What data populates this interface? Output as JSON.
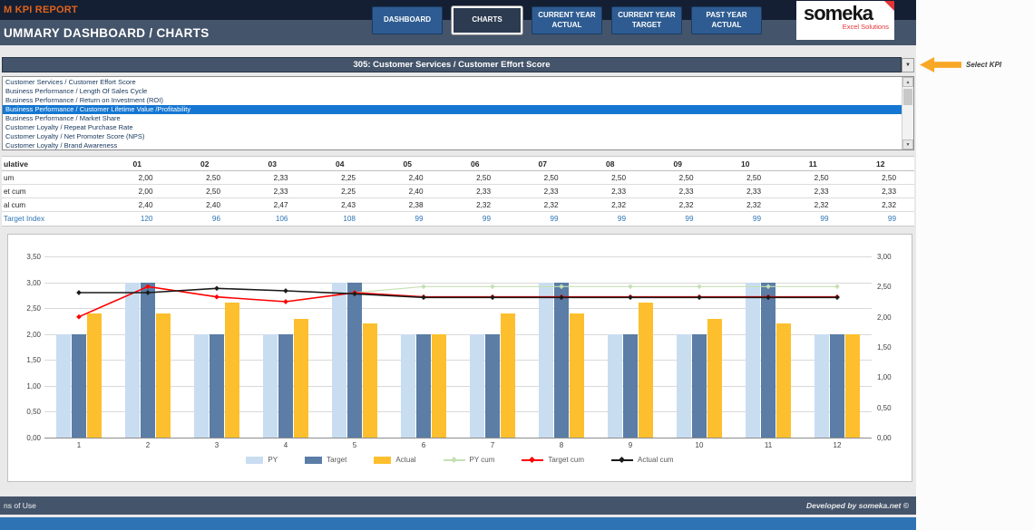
{
  "header": {
    "report_title": "M KPI REPORT",
    "page_title": "UMMARY DASHBOARD / CHARTS",
    "nav_buttons": [
      {
        "label": "DASHBOARD",
        "active": false
      },
      {
        "label": "CHARTS",
        "active": true
      },
      {
        "label": "CURRENT YEAR ACTUAL",
        "active": false
      },
      {
        "label": "CURRENT YEAR TARGET",
        "active": false
      },
      {
        "label": "PAST YEAR ACTUAL",
        "active": false
      }
    ],
    "logo": {
      "brand": "someka",
      "tagline": "Excel Solutions"
    }
  },
  "kpi_selector": {
    "selected_label": "305: Customer Services / Customer Effort Score",
    "helper_label": "Select KPI",
    "options": [
      {
        "label": "Customer Services / Customer Effort Score",
        "selected": false
      },
      {
        "label": "Business Performance / Length Of Sales Cycle",
        "selected": false
      },
      {
        "label": "Business Performance / Return on Investment (ROI)",
        "selected": false
      },
      {
        "label": "Business Performance / Customer Lifetime Value /Profitability",
        "selected": true
      },
      {
        "label": "Business Performance / Market Share",
        "selected": false
      },
      {
        "label": "Customer Loyalty / Repeat Purchase Rate",
        "selected": false
      },
      {
        "label": "Customer Loyalty / Net Promoter Score (NPS)",
        "selected": false
      },
      {
        "label": "Customer Loyalty / Brand Awareness",
        "selected": false
      }
    ]
  },
  "table": {
    "corner_label": "ulative",
    "columns": [
      "01",
      "02",
      "03",
      "04",
      "05",
      "06",
      "07",
      "08",
      "09",
      "10",
      "11",
      "12"
    ],
    "rows": [
      {
        "label": "um",
        "style": "normal",
        "values": [
          "2,00",
          "2,50",
          "2,33",
          "2,25",
          "2,40",
          "2,50",
          "2,50",
          "2,50",
          "2,50",
          "2,50",
          "2,50",
          "2,50"
        ]
      },
      {
        "label": "et cum",
        "style": "normal",
        "values": [
          "2,00",
          "2,50",
          "2,33",
          "2,25",
          "2,40",
          "2,33",
          "2,33",
          "2,33",
          "2,33",
          "2,33",
          "2,33",
          "2,33"
        ]
      },
      {
        "label": "al cum",
        "style": "normal",
        "values": [
          "2,40",
          "2,40",
          "2,47",
          "2,43",
          "2,38",
          "2,32",
          "2,32",
          "2,32",
          "2,32",
          "2,32",
          "2,32",
          "2,32"
        ]
      },
      {
        "label": "Target Index",
        "style": "accent",
        "values": [
          "120",
          "96",
          "106",
          "108",
          "99",
          "99",
          "99",
          "99",
          "99",
          "99",
          "99",
          "99"
        ]
      }
    ]
  },
  "chart_data": {
    "type": "bar",
    "title": "",
    "categories": [
      "1",
      "2",
      "3",
      "4",
      "5",
      "6",
      "7",
      "8",
      "9",
      "10",
      "11",
      "12"
    ],
    "bar_series": [
      {
        "name": "PY",
        "color": "#c9ddf1",
        "values": [
          2,
          3,
          2,
          2,
          3,
          2,
          2,
          3,
          2,
          2,
          3,
          2
        ]
      },
      {
        "name": "Target",
        "color": "#5b7da6",
        "values": [
          2,
          3,
          2,
          2,
          3,
          2,
          2,
          3,
          2,
          2,
          3,
          2
        ]
      },
      {
        "name": "Actual",
        "color": "#fdbf2d",
        "values": [
          2.4,
          2.4,
          2.6,
          2.3,
          2.2,
          2.0,
          2.4,
          2.4,
          2.6,
          2.3,
          2.2,
          2.0
        ]
      }
    ],
    "line_series": [
      {
        "name": "PY cum",
        "color": "#c6e0b4",
        "axis": "right",
        "values": [
          2.0,
          2.5,
          2.33,
          2.25,
          2.4,
          2.5,
          2.5,
          2.5,
          2.5,
          2.5,
          2.5,
          2.5
        ]
      },
      {
        "name": "Target cum",
        "color": "#ff0000",
        "axis": "right",
        "values": [
          2.0,
          2.5,
          2.33,
          2.25,
          2.4,
          2.33,
          2.33,
          2.33,
          2.33,
          2.33,
          2.33,
          2.33
        ]
      },
      {
        "name": "Actual cum",
        "color": "#1a1a1a",
        "axis": "right",
        "values": [
          2.4,
          2.4,
          2.47,
          2.43,
          2.38,
          2.32,
          2.32,
          2.32,
          2.32,
          2.32,
          2.32,
          2.32
        ]
      }
    ],
    "left_axis": {
      "min": 0,
      "max": 3.5,
      "step": 0.5,
      "labels": [
        "0,00",
        "0,50",
        "1,00",
        "1,50",
        "2,00",
        "2,50",
        "3,00",
        "3,50"
      ]
    },
    "right_axis": {
      "min": 0,
      "max": 3.0,
      "step": 0.5,
      "labels": [
        "0,00",
        "0,50",
        "1,00",
        "1,50",
        "2,00",
        "2,50",
        "3,00"
      ]
    },
    "grid": true,
    "legend_position": "bottom"
  },
  "footer": {
    "left_text": "ns of Use",
    "right_text": "Developed by someka.net ©"
  },
  "colors": {
    "accent_blue": "#2e75b6",
    "navy": "#44546a",
    "dark_navy": "#141f33",
    "orange": "#e2621b",
    "selection_blue": "#1577d2",
    "arrow_orange": "#f9a826",
    "footer_strip_blue": "#2e74b5"
  }
}
